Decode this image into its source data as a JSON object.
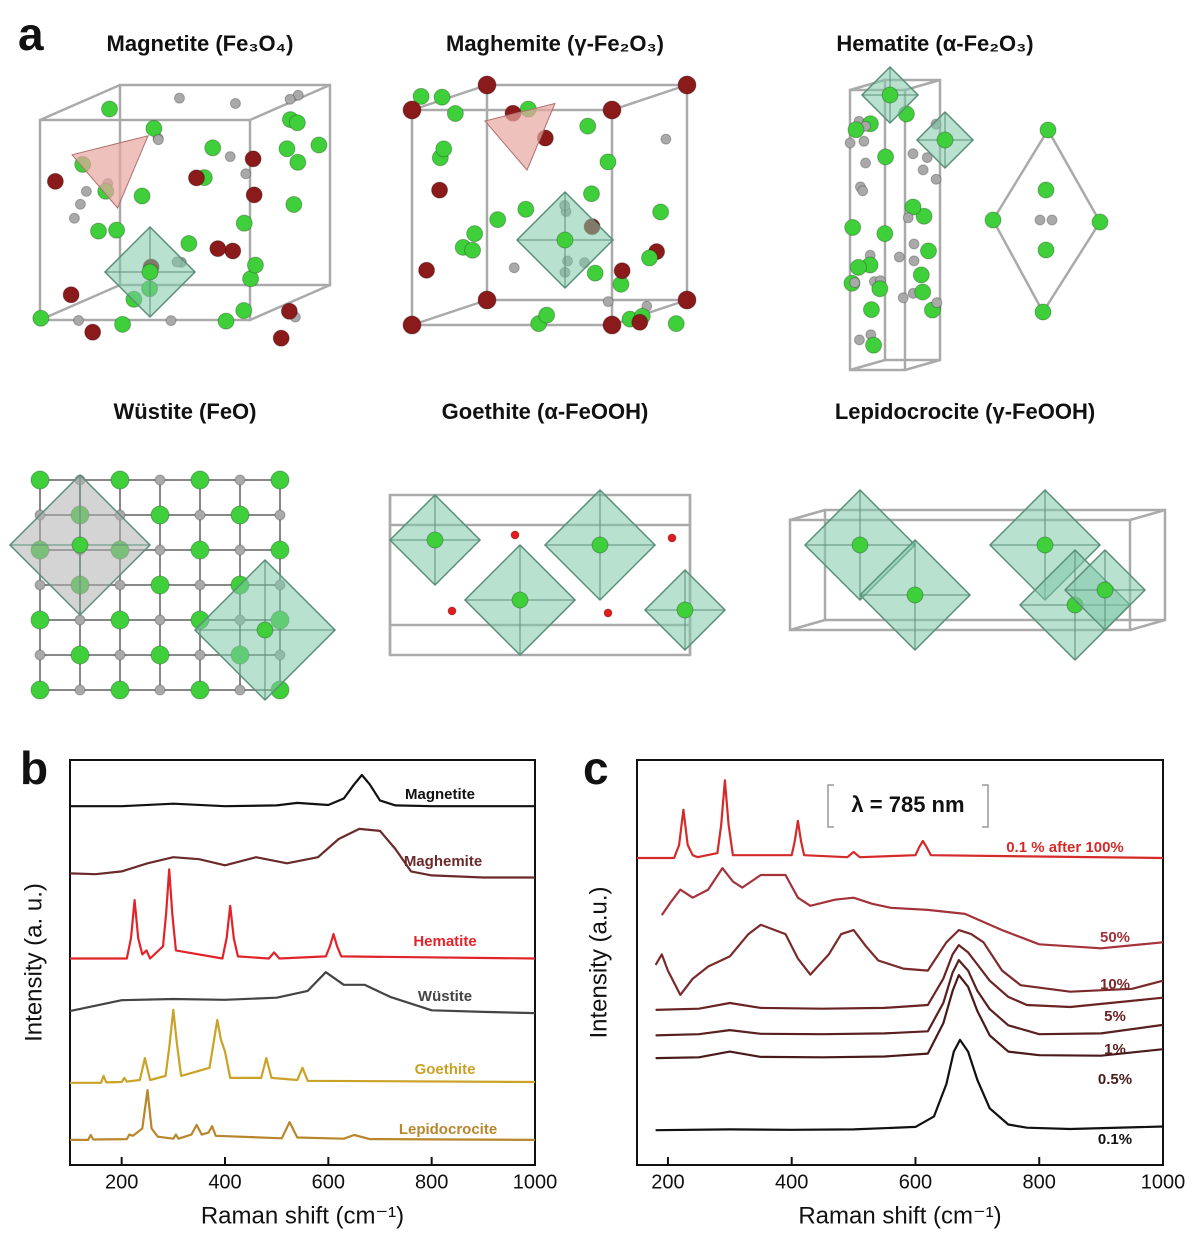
{
  "panel_a": {
    "label": "a",
    "structures": [
      {
        "name": "Magnetite (Fe₃O₄)"
      },
      {
        "name": "Maghemite (γ-Fe₂O₃)"
      },
      {
        "name": "Hematite (α-Fe₂O₃)"
      },
      {
        "name": "Wüstite (FeO)"
      },
      {
        "name": "Goethite (α-FeOOH)"
      },
      {
        "name": "Lepidocrocite (γ-FeOOH)"
      }
    ]
  },
  "chart_data": [
    {
      "type": "line",
      "panel_label": "b",
      "x_label": "Raman shift (cm⁻¹)",
      "y_label": "Intensity (a. u.)",
      "xlim": [
        100,
        1000
      ],
      "xticks": [
        200,
        400,
        600,
        800,
        1000
      ],
      "ylim": [
        0,
        100
      ],
      "series": [
        {
          "name": "Magnetite",
          "color": "#111111",
          "x": [
            100,
            200,
            300,
            400,
            500,
            540,
            600,
            630,
            650,
            665,
            680,
            700,
            730,
            800,
            1000
          ],
          "values": [
            88.6,
            88.6,
            89.2,
            88.6,
            88.8,
            89.4,
            88.9,
            90.5,
            94,
            96.3,
            94,
            90,
            88.8,
            88.6,
            88.6
          ]
        },
        {
          "name": "Maghemite",
          "color": "#6b2a2a",
          "x": [
            100,
            150,
            200,
            250,
            300,
            350,
            400,
            460,
            520,
            580,
            620,
            660,
            700,
            730,
            760,
            800,
            900,
            1000
          ],
          "values": [
            72,
            71.8,
            72.5,
            74.5,
            76,
            75.5,
            74,
            76,
            74.5,
            76,
            80.5,
            83,
            82.5,
            78,
            72.5,
            71.5,
            71,
            71
          ]
        },
        {
          "name": "Hematite",
          "color": "#e0242a",
          "x": [
            100,
            210,
            218,
            225,
            232,
            240,
            248,
            255,
            280,
            286,
            292,
            298,
            305,
            395,
            403,
            410,
            417,
            425,
            485,
            495,
            505,
            595,
            603,
            610,
            617,
            625,
            1000
          ],
          "values": [
            51,
            51,
            56,
            65.4,
            56,
            52,
            53,
            51,
            54,
            62,
            73,
            62,
            53,
            51,
            56,
            64,
            56,
            51.5,
            51,
            52.5,
            51,
            51.5,
            54,
            57,
            54,
            51.5,
            51
          ]
        },
        {
          "name": "Wüstite",
          "color": "#444444",
          "x": [
            100,
            200,
            300,
            400,
            500,
            560,
            595,
            630,
            670,
            720,
            800,
            900,
            1000
          ],
          "values": [
            38,
            40.7,
            41,
            40.8,
            41.3,
            43,
            47.6,
            44.5,
            44.5,
            41.5,
            38.2,
            37.8,
            37.5
          ]
        },
        {
          "name": "Goethite",
          "color": "#c9a227",
          "x": [
            100,
            160,
            165,
            170,
            200,
            205,
            210,
            235,
            245,
            255,
            285,
            293,
            300,
            307,
            315,
            370,
            385,
            392,
            400,
            410,
            470,
            480,
            490,
            540,
            550,
            560,
            1000
          ],
          "values": [
            20.3,
            20.3,
            22,
            20.4,
            20.5,
            21.5,
            20.6,
            21,
            26.4,
            21,
            22,
            30,
            38.3,
            30,
            22,
            24,
            35.8,
            31,
            28,
            21.5,
            21.5,
            26.4,
            21.5,
            21,
            24,
            20.8,
            20.5
          ]
        },
        {
          "name": "Lepidocrocite",
          "color": "#b8862b",
          "x": [
            100,
            135,
            140,
            145,
            210,
            215,
            222,
            240,
            250,
            258,
            270,
            300,
            305,
            310,
            335,
            345,
            355,
            368,
            375,
            382,
            510,
            525,
            540,
            630,
            650,
            680,
            1000
          ],
          "values": [
            6.2,
            6.2,
            7.4,
            6.3,
            6.4,
            7.5,
            7.2,
            9,
            18.5,
            9,
            7,
            6.5,
            7.5,
            6.5,
            7.5,
            9.9,
            7.5,
            8,
            9.6,
            7.2,
            6.6,
            10.6,
            6.8,
            6.5,
            7.4,
            6.4,
            6.2
          ]
        }
      ]
    },
    {
      "type": "line",
      "panel_label": "c",
      "x_label": "Raman shift (cm⁻¹)",
      "y_label": "Intensity (a.u.)",
      "annotation": "λ = 785 nm",
      "xlim": [
        150,
        1000
      ],
      "xticks": [
        200,
        400,
        600,
        800,
        1000
      ],
      "ylim": [
        0,
        100
      ],
      "series": [
        {
          "name": "0.1 % after 100%",
          "color": "#d42a2a",
          "x": [
            150,
            210,
            218,
            225,
            232,
            240,
            248,
            280,
            286,
            292,
            298,
            305,
            400,
            405,
            410,
            415,
            420,
            490,
            500,
            510,
            600,
            606,
            612,
            618,
            625,
            1000
          ],
          "values": [
            75.8,
            75.8,
            79,
            87.7,
            79,
            76.5,
            76,
            77,
            84,
            95,
            84,
            76.5,
            76.5,
            80,
            85,
            80,
            76.5,
            76,
            77.3,
            76,
            76.5,
            78.5,
            80,
            78.5,
            76.5,
            75.8
          ]
        },
        {
          "name": "50%",
          "color": "#a3323a",
          "x": [
            190,
            205,
            220,
            240,
            265,
            288,
            305,
            320,
            350,
            390,
            410,
            430,
            470,
            500,
            530,
            560,
            620,
            680,
            740,
            800,
            900,
            1000
          ],
          "values": [
            61.7,
            65,
            68,
            66,
            68,
            73.3,
            70,
            68.5,
            71.6,
            71.6,
            66,
            64,
            65.5,
            66,
            64.5,
            63.5,
            63,
            62,
            58,
            54.5,
            53.5,
            55
          ]
        },
        {
          "name": "10%",
          "color": "#7a2a2a",
          "x": [
            180,
            190,
            200,
            220,
            240,
            265,
            300,
            330,
            350,
            390,
            410,
            430,
            460,
            480,
            500,
            520,
            540,
            580,
            620,
            650,
            670,
            690,
            710,
            740,
            770,
            850,
            950,
            1000
          ],
          "values": [
            49.4,
            52,
            48,
            42,
            46,
            49,
            51.5,
            57,
            59.3,
            57,
            51,
            47,
            52,
            57,
            58,
            54,
            50.5,
            48.5,
            48,
            55,
            58,
            57,
            55,
            48,
            44.4,
            42.8,
            43.5,
            45.5
          ]
        },
        {
          "name": "5%",
          "color": "#6a2323",
          "x": [
            180,
            250,
            300,
            350,
            450,
            550,
            620,
            645,
            660,
            670,
            685,
            700,
            720,
            750,
            780,
            850,
            1000
          ],
          "values": [
            38.3,
            38.6,
            40,
            38.8,
            38.6,
            38.8,
            39.5,
            46,
            52,
            54.3,
            52.5,
            49.5,
            45.5,
            41.5,
            39.5,
            39,
            41.3
          ]
        },
        {
          "name": "1%",
          "color": "#5a2020",
          "x": [
            180,
            250,
            300,
            350,
            450,
            550,
            620,
            645,
            660,
            670,
            685,
            700,
            720,
            750,
            800,
            900,
            1000
          ],
          "values": [
            32,
            32.3,
            33.3,
            32.4,
            32.3,
            32.5,
            33,
            40,
            47.5,
            50.6,
            48,
            43,
            38.5,
            34.5,
            32.3,
            32.5,
            34.6
          ]
        },
        {
          "name": "0.5%",
          "color": "#4a1a1a",
          "x": [
            180,
            250,
            300,
            350,
            450,
            550,
            620,
            645,
            660,
            670,
            685,
            700,
            720,
            750,
            800,
            900,
            1000
          ],
          "values": [
            26.4,
            26.6,
            28,
            26.7,
            26.6,
            26.8,
            27.5,
            35,
            43,
            46.9,
            44,
            38,
            32,
            28,
            27.1,
            27,
            28.6
          ]
        },
        {
          "name": "0.1%",
          "color": "#111111",
          "x": [
            180,
            300,
            400,
            500,
            600,
            630,
            650,
            662,
            672,
            685,
            700,
            720,
            750,
            780,
            850,
            1000
          ],
          "values": [
            8.6,
            8.8,
            8.7,
            8.8,
            9.4,
            12,
            20,
            28,
            30.9,
            28,
            21,
            14,
            10,
            9.2,
            8.9,
            9.5
          ]
        }
      ]
    }
  ]
}
